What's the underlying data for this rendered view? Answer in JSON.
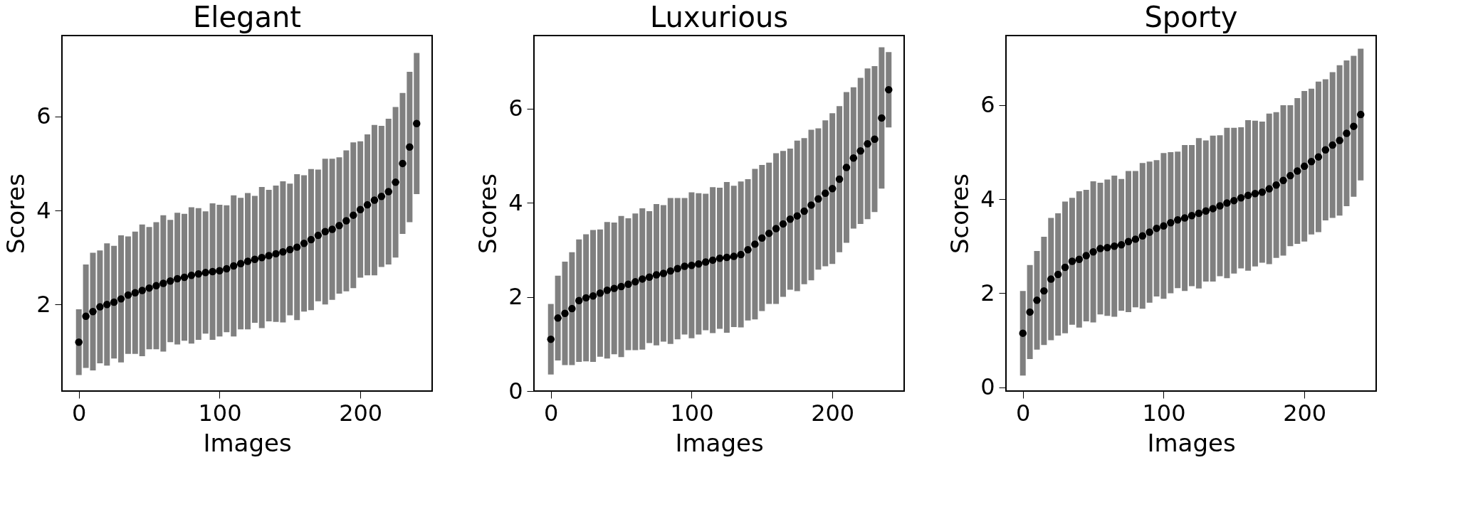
{
  "chart_data": [
    {
      "type": "scatter",
      "title": "Elegant",
      "xlabel": "Images",
      "ylabel": "Scores",
      "marker": "circle",
      "xlim": [
        -12,
        251
      ],
      "ylim": [
        0.16,
        7.72
      ],
      "xticks": [
        0,
        100,
        200
      ],
      "yticks": [
        2,
        4,
        6
      ],
      "x": [
        0,
        5,
        10,
        15,
        20,
        25,
        30,
        35,
        40,
        45,
        50,
        55,
        60,
        65,
        70,
        75,
        80,
        85,
        90,
        95,
        100,
        105,
        110,
        115,
        120,
        125,
        130,
        135,
        140,
        145,
        150,
        155,
        160,
        165,
        170,
        175,
        180,
        185,
        190,
        195,
        200,
        205,
        210,
        215,
        220,
        225,
        230,
        235,
        240
      ],
      "series": [
        {
          "color": "#000000",
          "values": [
            1.2,
            1.75,
            1.85,
            1.95,
            2.0,
            2.05,
            2.12,
            2.2,
            2.25,
            2.3,
            2.35,
            2.4,
            2.45,
            2.5,
            2.55,
            2.58,
            2.62,
            2.65,
            2.68,
            2.7,
            2.72,
            2.76,
            2.82,
            2.87,
            2.92,
            2.96,
            3.0,
            3.04,
            3.08,
            3.12,
            3.17,
            3.22,
            3.3,
            3.38,
            3.47,
            3.55,
            3.6,
            3.68,
            3.78,
            3.9,
            4.02,
            4.12,
            4.22,
            4.3,
            4.4,
            4.6,
            5.0,
            5.35,
            5.85
          ],
          "errors": [
            0.7,
            1.1,
            1.25,
            1.2,
            1.3,
            1.2,
            1.35,
            1.25,
            1.3,
            1.4,
            1.3,
            1.35,
            1.45,
            1.3,
            1.4,
            1.35,
            1.45,
            1.4,
            1.3,
            1.45,
            1.4,
            1.35,
            1.5,
            1.4,
            1.45,
            1.35,
            1.5,
            1.4,
            1.45,
            1.5,
            1.4,
            1.55,
            1.45,
            1.5,
            1.4,
            1.55,
            1.5,
            1.45,
            1.5,
            1.55,
            1.45,
            1.5,
            1.6,
            1.5,
            1.55,
            1.6,
            1.5,
            1.6,
            1.5
          ]
        }
      ]
    },
    {
      "type": "scatter",
      "title": "Luxurious",
      "xlabel": "Images",
      "ylabel": "Scores",
      "marker": "circle",
      "xlim": [
        -12,
        251
      ],
      "ylim": [
        0,
        7.55
      ],
      "xticks": [
        0,
        100,
        200
      ],
      "yticks": [
        0,
        2,
        4,
        6
      ],
      "x": [
        0,
        5,
        10,
        15,
        20,
        25,
        30,
        35,
        40,
        45,
        50,
        55,
        60,
        65,
        70,
        75,
        80,
        85,
        90,
        95,
        100,
        105,
        110,
        115,
        120,
        125,
        130,
        135,
        140,
        145,
        150,
        155,
        160,
        165,
        170,
        175,
        180,
        185,
        190,
        195,
        200,
        205,
        210,
        215,
        220,
        225,
        230,
        235,
        240
      ],
      "series": [
        {
          "color": "#000000",
          "values": [
            1.1,
            1.55,
            1.65,
            1.75,
            1.92,
            1.98,
            2.02,
            2.08,
            2.14,
            2.18,
            2.22,
            2.27,
            2.32,
            2.38,
            2.42,
            2.47,
            2.5,
            2.55,
            2.6,
            2.65,
            2.67,
            2.7,
            2.74,
            2.78,
            2.82,
            2.84,
            2.86,
            2.9,
            3.0,
            3.12,
            3.25,
            3.35,
            3.45,
            3.55,
            3.65,
            3.72,
            3.82,
            3.95,
            4.08,
            4.2,
            4.3,
            4.5,
            4.75,
            4.95,
            5.1,
            5.25,
            5.35,
            5.8,
            6.4
          ],
          "errors": [
            0.75,
            0.9,
            1.1,
            1.2,
            1.3,
            1.35,
            1.4,
            1.35,
            1.45,
            1.4,
            1.5,
            1.4,
            1.45,
            1.5,
            1.4,
            1.5,
            1.45,
            1.55,
            1.5,
            1.45,
            1.55,
            1.5,
            1.45,
            1.55,
            1.5,
            1.6,
            1.5,
            1.55,
            1.5,
            1.6,
            1.55,
            1.5,
            1.6,
            1.55,
            1.5,
            1.6,
            1.55,
            1.6,
            1.5,
            1.55,
            1.6,
            1.55,
            1.6,
            1.5,
            1.55,
            1.6,
            1.55,
            1.5,
            0.8
          ]
        }
      ]
    },
    {
      "type": "scatter",
      "title": "Sporty",
      "xlabel": "Images",
      "ylabel": "Scores",
      "marker": "circle",
      "xlim": [
        -12,
        251
      ],
      "ylim": [
        -0.08,
        7.48
      ],
      "xticks": [
        0,
        100,
        200
      ],
      "yticks": [
        0,
        2,
        4,
        6
      ],
      "x": [
        0,
        5,
        10,
        15,
        20,
        25,
        30,
        35,
        40,
        45,
        50,
        55,
        60,
        65,
        70,
        75,
        80,
        85,
        90,
        95,
        100,
        105,
        110,
        115,
        120,
        125,
        130,
        135,
        140,
        145,
        150,
        155,
        160,
        165,
        170,
        175,
        180,
        185,
        190,
        195,
        200,
        205,
        210,
        215,
        220,
        225,
        230,
        235,
        240
      ],
      "series": [
        {
          "color": "#000000",
          "values": [
            1.15,
            1.6,
            1.85,
            2.05,
            2.3,
            2.4,
            2.55,
            2.68,
            2.72,
            2.8,
            2.88,
            2.95,
            2.97,
            3.0,
            3.03,
            3.1,
            3.15,
            3.22,
            3.3,
            3.38,
            3.43,
            3.5,
            3.56,
            3.6,
            3.65,
            3.7,
            3.75,
            3.8,
            3.86,
            3.92,
            3.97,
            4.03,
            4.08,
            4.12,
            4.15,
            4.22,
            4.3,
            4.4,
            4.5,
            4.6,
            4.7,
            4.8,
            4.9,
            5.05,
            5.15,
            5.25,
            5.4,
            5.55,
            5.8
          ],
          "errors": [
            0.9,
            1.0,
            1.05,
            1.15,
            1.3,
            1.3,
            1.4,
            1.35,
            1.45,
            1.4,
            1.5,
            1.4,
            1.45,
            1.5,
            1.4,
            1.5,
            1.45,
            1.55,
            1.5,
            1.45,
            1.55,
            1.5,
            1.45,
            1.55,
            1.5,
            1.6,
            1.5,
            1.55,
            1.5,
            1.6,
            1.55,
            1.5,
            1.6,
            1.55,
            1.5,
            1.6,
            1.55,
            1.6,
            1.5,
            1.55,
            1.6,
            1.55,
            1.6,
            1.5,
            1.55,
            1.6,
            1.55,
            1.5,
            1.4
          ]
        }
      ]
    }
  ]
}
